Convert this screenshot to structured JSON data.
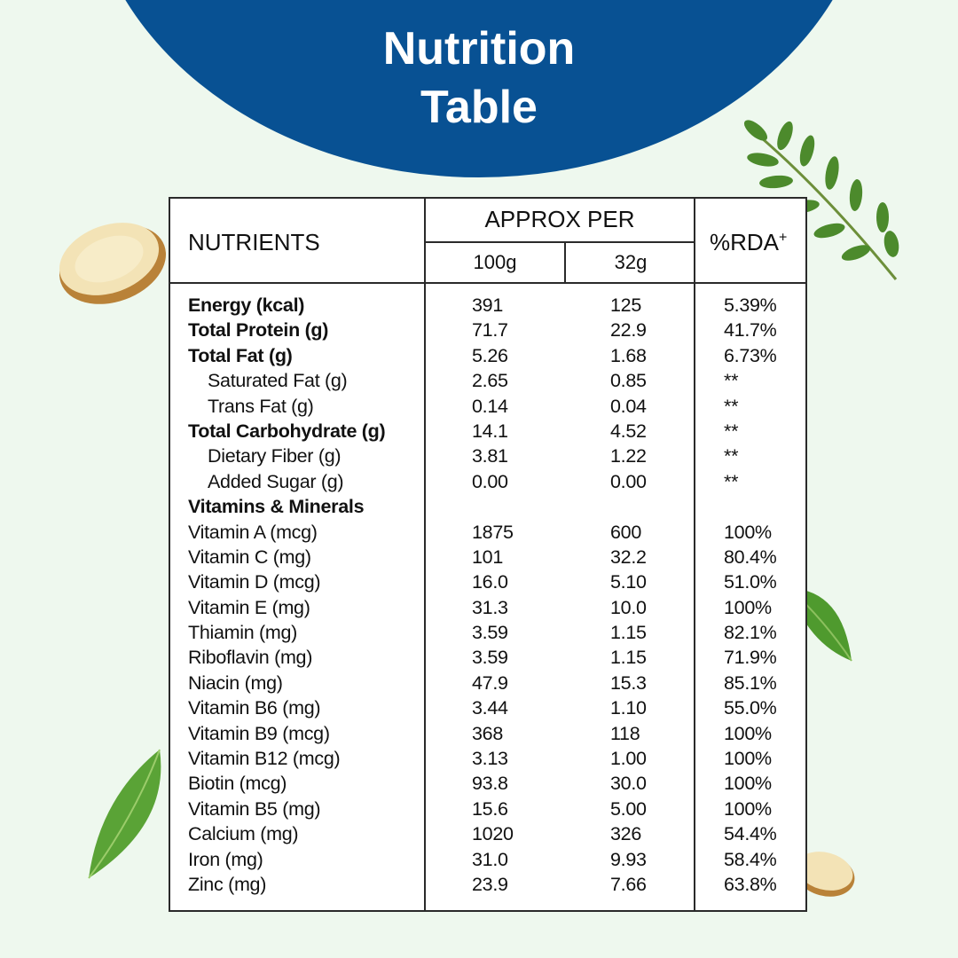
{
  "title": {
    "line1": "Nutrition",
    "line2": "Table"
  },
  "table": {
    "header": {
      "nutrients": "NUTRIENTS",
      "approx_per": "APPROX PER",
      "col_100g": "100g",
      "col_32g": "32g",
      "rda": "%RDA",
      "rda_sup": "+"
    },
    "rows": [
      {
        "name": "Energy (kcal)",
        "v100": "391",
        "v32": "125",
        "rda": "5.39%",
        "style": "bold"
      },
      {
        "name": "Total Protein (g)",
        "v100": "71.7",
        "v32": "22.9",
        "rda": "41.7%",
        "style": "bold"
      },
      {
        "name": "Total Fat (g)",
        "v100": "5.26",
        "v32": "1.68",
        "rda": "6.73%",
        "style": "bold"
      },
      {
        "name": "Saturated Fat (g)",
        "v100": "2.65",
        "v32": "0.85",
        "rda": "**",
        "style": "sub"
      },
      {
        "name": "Trans Fat (g)",
        "v100": "0.14",
        "v32": "0.04",
        "rda": "**",
        "style": "sub"
      },
      {
        "name": "Total Carbohydrate (g)",
        "v100": "14.1",
        "v32": "4.52",
        "rda": "**",
        "style": "bold"
      },
      {
        "name": "Dietary Fiber (g)",
        "v100": "3.81",
        "v32": "1.22",
        "rda": "**",
        "style": "sub"
      },
      {
        "name": "Added Sugar (g)",
        "v100": "0.00",
        "v32": "0.00",
        "rda": "**",
        "style": "sub"
      },
      {
        "name": "Vitamins & Minerals",
        "v100": "",
        "v32": "",
        "rda": "",
        "style": "bold"
      },
      {
        "name": "Vitamin A (mcg)",
        "v100": "1875",
        "v32": "600",
        "rda": "100%",
        "style": "normal"
      },
      {
        "name": "Vitamin C (mg)",
        "v100": "101",
        "v32": "32.2",
        "rda": "80.4%",
        "style": "normal"
      },
      {
        "name": "Vitamin D (mcg)",
        "v100": "16.0",
        "v32": "5.10",
        "rda": "51.0%",
        "style": "normal"
      },
      {
        "name": "Vitamin E (mg)",
        "v100": "31.3",
        "v32": "10.0",
        "rda": "100%",
        "style": "normal"
      },
      {
        "name": "Thiamin (mg)",
        "v100": "3.59",
        "v32": "1.15",
        "rda": "82.1%",
        "style": "normal"
      },
      {
        "name": "Riboflavin (mg)",
        "v100": "3.59",
        "v32": "1.15",
        "rda": "71.9%",
        "style": "normal"
      },
      {
        "name": "Niacin (mg)",
        "v100": "47.9",
        "v32": "15.3",
        "rda": "85.1%",
        "style": "normal"
      },
      {
        "name": "Vitamin B6 (mg)",
        "v100": "3.44",
        "v32": "1.10",
        "rda": "55.0%",
        "style": "normal"
      },
      {
        "name": "Vitamin B9 (mcg)",
        "v100": "368",
        "v32": "118",
        "rda": "100%",
        "style": "normal"
      },
      {
        "name": "Vitamin B12 (mcg)",
        "v100": "3.13",
        "v32": "1.00",
        "rda": "100%",
        "style": "normal"
      },
      {
        "name": "Biotin (mcg)",
        "v100": "93.8",
        "v32": "30.0",
        "rda": "100%",
        "style": "normal"
      },
      {
        "name": "Vitamin B5 (mg)",
        "v100": "15.6",
        "v32": "5.00",
        "rda": "100%",
        "style": "normal"
      },
      {
        "name": "Calcium (mg)",
        "v100": "1020",
        "v32": "326",
        "rda": "54.4%",
        "style": "normal"
      },
      {
        "name": "Iron (mg)",
        "v100": "31.0",
        "v32": "9.93",
        "rda": "58.4%",
        "style": "normal"
      },
      {
        "name": "Zinc (mg)",
        "v100": "23.9",
        "v32": "7.66",
        "rda": "63.8%",
        "style": "normal"
      }
    ]
  },
  "colors": {
    "banner": "#085193",
    "background": "#eef8ee",
    "text": "#111111"
  },
  "decorations": [
    "ginger-slice-illustration",
    "moringa-branch-illustration",
    "green-leaf-illustration",
    "green-leaf-illustration",
    "ginger-slice-illustration"
  ]
}
